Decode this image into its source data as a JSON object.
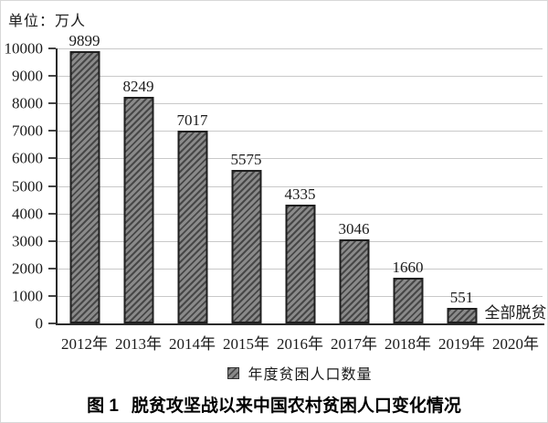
{
  "figure": {
    "unit_label": "单位：万人",
    "caption": {
      "prefix": "图 1",
      "text": "脱贫攻坚战以来中国农村贫困人口变化情况"
    }
  },
  "legend": {
    "marker": "hatched-square",
    "label": "年度贫困人口数量"
  },
  "chart_data": {
    "type": "bar",
    "title": "图 1 脱贫攻坚战以来中国农村贫困人口变化情况",
    "unit_label": "单位：万人",
    "ylabel": "万人",
    "xlabel": "",
    "categories": [
      "2012年",
      "2013年",
      "2014年",
      "2015年",
      "2016年",
      "2017年",
      "2018年",
      "2019年",
      "2020年"
    ],
    "values": [
      9899,
      8249,
      7017,
      5575,
      4335,
      3046,
      1660,
      551,
      null
    ],
    "bar_labels": [
      "9899",
      "8249",
      "7017",
      "5575",
      "4335",
      "3046",
      "1660",
      "551",
      "全部脱贫"
    ],
    "annotations": [
      {
        "category": "2020年",
        "text": "全部脱贫",
        "position": "baseline"
      }
    ],
    "legend_entries": [
      "年度贫困人口数量"
    ],
    "legend_position": "bottom",
    "ylim": [
      0,
      10000
    ],
    "yticks": [
      0,
      1000,
      2000,
      3000,
      4000,
      5000,
      6000,
      7000,
      8000,
      9000,
      10000
    ],
    "grid": "horizontal",
    "colors": {
      "bar_fill": "#8a8a8a",
      "bar_hatch": "#474747",
      "bar_border": "#1f1f1f",
      "gridline": "#c9c9c9",
      "axis": "#2b2b2b",
      "text": "#1a1a1a"
    }
  }
}
